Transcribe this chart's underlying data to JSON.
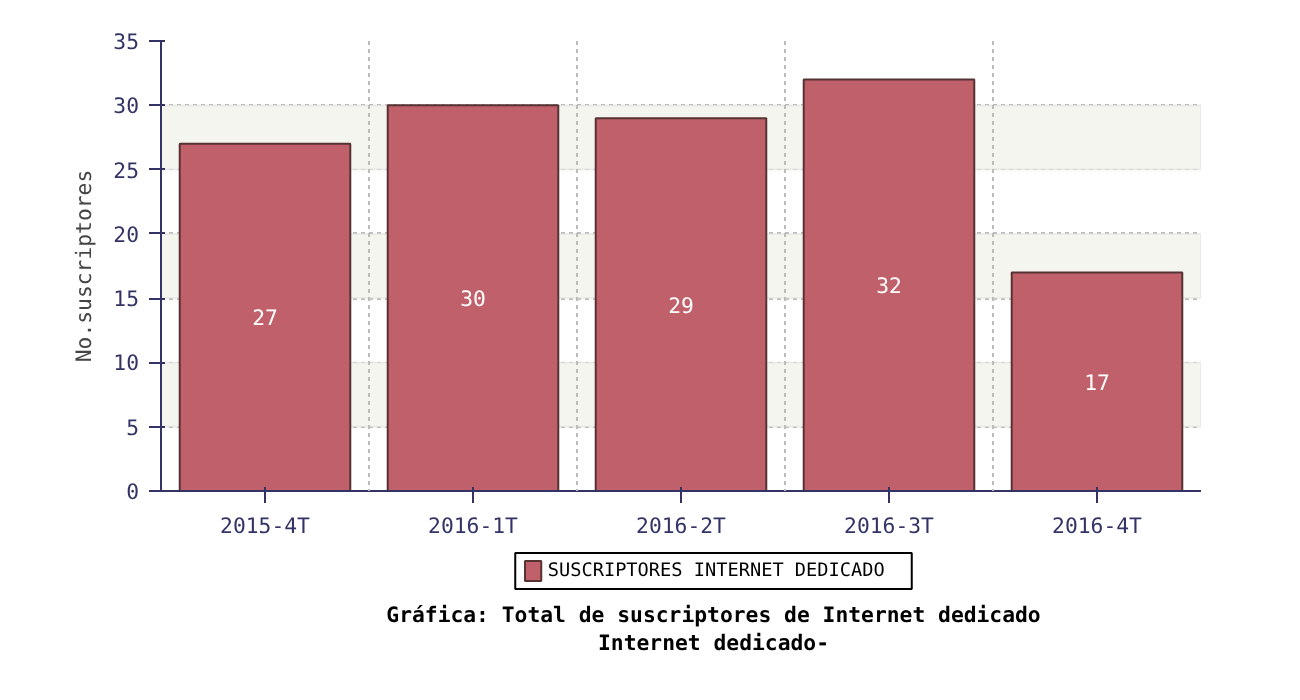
{
  "chart_data": {
    "type": "bar",
    "title": "Gráfica: Total de suscriptores de Internet dedicado",
    "subtitle": "Internet dedicado-",
    "ylabel": "No.suscriptores",
    "categories": [
      "2015-4T",
      "2016-1T",
      "2016-2T",
      "2016-3T",
      "2016-4T"
    ],
    "series": [
      {
        "name": "SUSCRIPTORES INTERNET DEDICADO",
        "color": "#c0606a",
        "values": [
          27,
          30,
          29,
          32,
          17
        ]
      }
    ],
    "ylim": [
      0,
      35
    ],
    "yticks": [
      0,
      5,
      10,
      15,
      20,
      25,
      30,
      35
    ],
    "grid": true,
    "legend": "bottom",
    "data_labels": true,
    "bands": [
      {
        "axis": "y",
        "from": 5,
        "to": 10,
        "color": "#f5f5ef"
      },
      {
        "axis": "y",
        "from": 15,
        "to": 20,
        "color": "#f5f5ef"
      },
      {
        "axis": "y",
        "from": 25,
        "to": 30,
        "color": "#f5f5ef"
      }
    ]
  }
}
